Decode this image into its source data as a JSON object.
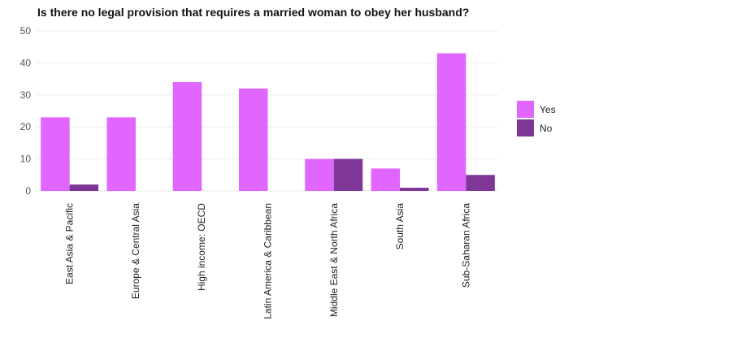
{
  "chart_data": {
    "type": "bar",
    "title": "Is there no legal provision that requires a married woman to obey her husband?",
    "xlabel": "",
    "ylabel": "",
    "categories": [
      "East Asia & Pacific",
      "Europe & Central Asia",
      "High income: OECD",
      "Latin America & Caribbean",
      "Middle East & North Africa",
      "South Asia",
      "Sub-Saharan Africa"
    ],
    "series": [
      {
        "name": "Yes",
        "color": "#e066ff",
        "values": [
          23,
          23,
          34,
          32,
          10,
          7,
          43
        ]
      },
      {
        "name": "No",
        "color": "#7e3796",
        "values": [
          2,
          0,
          0,
          0,
          10,
          1,
          5
        ]
      }
    ],
    "ylim": [
      0,
      50
    ],
    "yticks": [
      0,
      10,
      20,
      30,
      40,
      50
    ],
    "grid": true,
    "legend_position": "right"
  }
}
